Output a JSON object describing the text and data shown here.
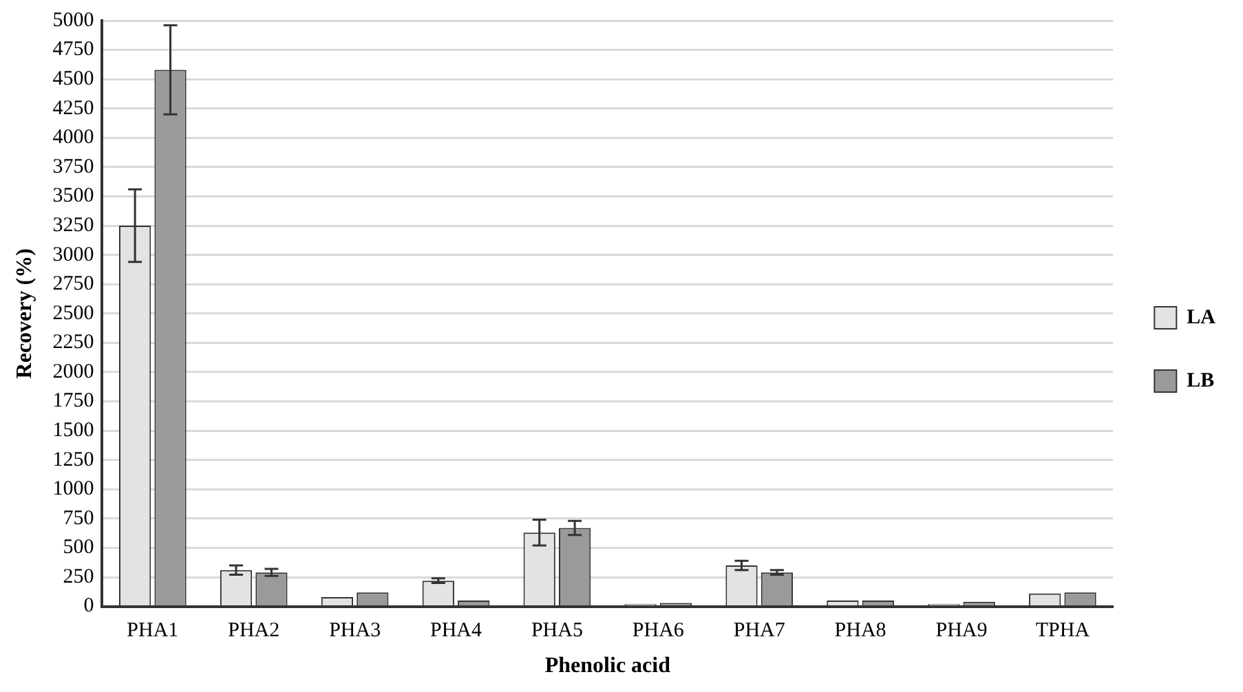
{
  "chart_data": {
    "type": "bar",
    "xlabel": "Phenolic acid",
    "ylabel": "Recovery (%)",
    "categories": [
      "PHA1",
      "PHA2",
      "PHA3",
      "PHA4",
      "PHA5",
      "PHA6",
      "PHA7",
      "PHA8",
      "PHA9",
      "TPHA"
    ],
    "series": [
      {
        "name": "LA",
        "color": "#e3e3e3",
        "values": [
          3250,
          310,
          80,
          220,
          630,
          20,
          350,
          50,
          20,
          110
        ],
        "errors": [
          310,
          40,
          null,
          20,
          110,
          null,
          40,
          null,
          null,
          null
        ]
      },
      {
        "name": "LB",
        "color": "#9a9a9a",
        "values": [
          4580,
          290,
          120,
          50,
          670,
          30,
          290,
          50,
          40,
          120
        ],
        "errors": [
          380,
          30,
          null,
          null,
          60,
          null,
          20,
          null,
          null,
          null
        ]
      }
    ],
    "ylim": [
      0,
      5000
    ],
    "yticks": [
      0,
      250,
      500,
      750,
      1000,
      1250,
      1500,
      1750,
      2000,
      2250,
      2500,
      2750,
      3000,
      3250,
      3500,
      3750,
      4000,
      4250,
      4500,
      4750,
      5000
    ],
    "grid": "y",
    "legend": "right"
  }
}
